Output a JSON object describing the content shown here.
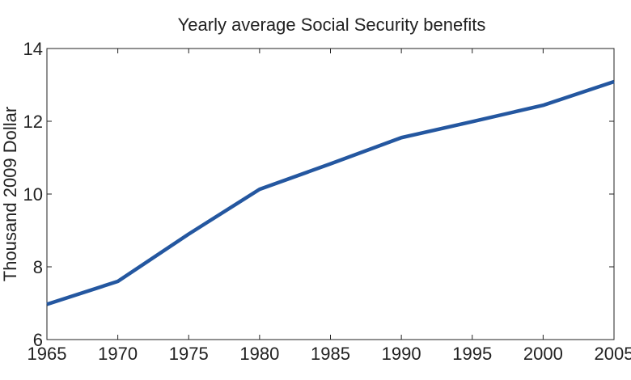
{
  "chart_data": {
    "type": "line",
    "title": "Yearly average Social Security benefits",
    "xlabel": "",
    "ylabel": "Thousand 2009 Dollar",
    "xlim": [
      1965,
      2005
    ],
    "ylim": [
      6,
      14
    ],
    "xticks": [
      "1965",
      "1970",
      "1975",
      "1980",
      "1985",
      "1990",
      "1995",
      "2000",
      "2005"
    ],
    "yticks": [
      "6",
      "8",
      "10",
      "12",
      "14"
    ],
    "grid": false,
    "series": [
      {
        "color": "#2457a0",
        "x": [
          1965,
          1970,
          1975,
          1980,
          1985,
          1990,
          1995,
          2000,
          2005
        ],
        "values": [
          6.97,
          7.6,
          8.9,
          10.13,
          10.83,
          11.55,
          11.99,
          12.44,
          13.09
        ]
      }
    ]
  }
}
